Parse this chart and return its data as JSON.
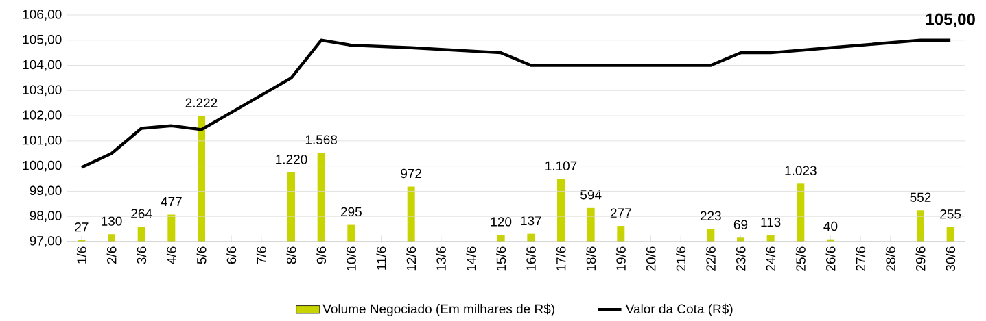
{
  "chart_data": {
    "type": "bar",
    "categories": [
      "1/6",
      "2/6",
      "3/6",
      "4/6",
      "5/6",
      "6/6",
      "7/6",
      "8/6",
      "9/6",
      "10/6",
      "11/6",
      "12/6",
      "13/6",
      "14/6",
      "15/6",
      "16/6",
      "17/6",
      "18/6",
      "19/6",
      "20/6",
      "21/6",
      "22/6",
      "23/6",
      "24/6",
      "25/6",
      "26/6",
      "27/6",
      "28/6",
      "29/6",
      "30/6"
    ],
    "series": [
      {
        "name": "Volume Negociado (Em milhares de R$)",
        "axis": "y2",
        "color": "#c8d400",
        "values": [
          27,
          130,
          264,
          477,
          2222,
          null,
          null,
          1220,
          1568,
          295,
          null,
          972,
          null,
          null,
          120,
          137,
          1107,
          594,
          277,
          null,
          null,
          223,
          69,
          113,
          1023,
          40,
          null,
          null,
          552,
          255
        ],
        "value_labels": [
          "27",
          "130",
          "264",
          "477",
          "2.222",
          null,
          null,
          "1.220",
          "1.568",
          "295",
          null,
          "972",
          null,
          null,
          "120",
          "137",
          "1.107",
          "594",
          "277",
          null,
          null,
          "223",
          "69",
          "113",
          "1.023",
          "40",
          null,
          null,
          "552",
          "255"
        ]
      },
      {
        "name": "Valor da Cota (R$)",
        "type": "line",
        "color": "#000000",
        "values": [
          99.95,
          100.5,
          101.5,
          101.6,
          101.45,
          null,
          null,
          103.5,
          105.0,
          104.8,
          null,
          104.7,
          null,
          null,
          104.5,
          104.0,
          104.0,
          104.0,
          104.0,
          null,
          null,
          104.0,
          104.5,
          104.5,
          104.6,
          104.7,
          null,
          null,
          105.0,
          105.0
        ]
      }
    ],
    "ylim": [
      97,
      106
    ],
    "yticks": [
      {
        "value": 97,
        "label": "97,00"
      },
      {
        "value": 98,
        "label": "98,00"
      },
      {
        "value": 99,
        "label": "99,00"
      },
      {
        "value": 100,
        "label": "100,00"
      },
      {
        "value": 101,
        "label": "101,00"
      },
      {
        "value": 102,
        "label": "102,00"
      },
      {
        "value": 103,
        "label": "103,00"
      },
      {
        "value": 104,
        "label": "104,00"
      },
      {
        "value": 105,
        "label": "105,00"
      },
      {
        "value": 106,
        "label": "106,00"
      }
    ],
    "y2lim": [
      0,
      4000
    ],
    "grid": "y",
    "legend": "bottom",
    "marker": "none",
    "line_style": "solid",
    "annotations": [
      {
        "text": "105,00",
        "x": "30/6",
        "y": 105.0
      }
    ]
  }
}
